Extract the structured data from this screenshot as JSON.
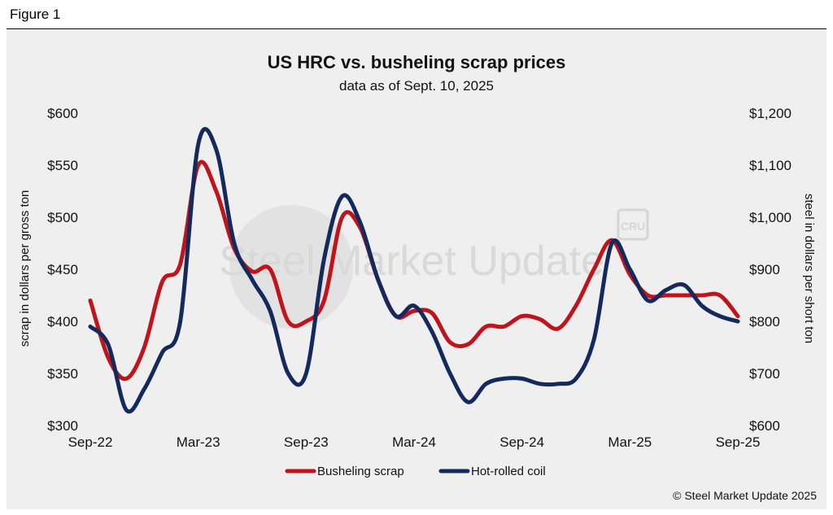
{
  "figure_label": "Figure 1",
  "copyright": "© Steel Market Update 2025",
  "watermark": {
    "brand": "Steel Market Update",
    "logo_text": "CRU"
  },
  "colors": {
    "scrap": "#c0141c",
    "hrc": "#142a5c",
    "panel": "#efefef",
    "watermark": "#d9d9d9"
  },
  "chart_data": {
    "type": "line",
    "title": "US HRC vs. busheling scrap prices",
    "subtitle": "data as of Sept. 10, 2025",
    "x_tick_labels": [
      "Sep-22",
      "Mar-23",
      "Sep-23",
      "Mar-24",
      "Sep-24",
      "Mar-25",
      "Sep-25"
    ],
    "x_tick_positions_months": [
      0,
      6,
      12,
      18,
      24,
      30,
      36
    ],
    "xlim": [
      0,
      36
    ],
    "y_left": {
      "label": "scrap in dollars per gross ton",
      "range": [
        300,
        600
      ],
      "ticks": [
        300,
        350,
        400,
        450,
        500,
        550,
        600
      ],
      "tick_labels": [
        "$300",
        "$350",
        "$400",
        "$450",
        "$500",
        "$550",
        "$600"
      ]
    },
    "y_right": {
      "label": "steel in dollars per short ton",
      "range": [
        600,
        1200
      ],
      "ticks": [
        600,
        700,
        800,
        900,
        1000,
        1100,
        1200
      ],
      "tick_labels": [
        "$600",
        "$700",
        "$800",
        "$900",
        "$1,000",
        "$1,100",
        "$1,200"
      ]
    },
    "legend": [
      "Busheling scrap",
      "Hot-rolled coil"
    ],
    "legend_position": "bottom-center",
    "series": [
      {
        "name": "Busheling scrap",
        "axis": "left",
        "x": [
          0,
          1,
          2,
          3,
          4,
          5,
          6,
          7,
          8,
          9,
          10,
          11,
          12,
          13,
          14,
          15,
          16,
          17,
          18,
          19,
          20,
          21,
          22,
          23,
          24,
          25,
          26,
          27,
          28,
          29,
          30,
          31,
          32,
          33,
          34,
          35,
          36
        ],
        "values": [
          420,
          365,
          345,
          375,
          438,
          455,
          550,
          525,
          470,
          448,
          450,
          400,
          400,
          420,
          500,
          490,
          440,
          405,
          410,
          408,
          380,
          378,
          395,
          395,
          405,
          402,
          393,
          415,
          450,
          478,
          445,
          425,
          425,
          425,
          425,
          425,
          405
        ]
      },
      {
        "name": "Hot-rolled coil",
        "axis": "right",
        "x": [
          0,
          1,
          2,
          3,
          4,
          5,
          6,
          7,
          8,
          9,
          10,
          11,
          12,
          13,
          14,
          15,
          16,
          17,
          18,
          19,
          20,
          21,
          22,
          23,
          24,
          25,
          26,
          27,
          28,
          29,
          30,
          31,
          32,
          33,
          34,
          35,
          36
        ],
        "values": [
          790,
          755,
          630,
          670,
          740,
          800,
          1140,
          1130,
          950,
          880,
          820,
          700,
          700,
          920,
          1040,
          990,
          880,
          810,
          830,
          780,
          700,
          645,
          680,
          690,
          690,
          680,
          680,
          690,
          765,
          950,
          900,
          840,
          860,
          870,
          830,
          810,
          800
        ]
      }
    ]
  }
}
